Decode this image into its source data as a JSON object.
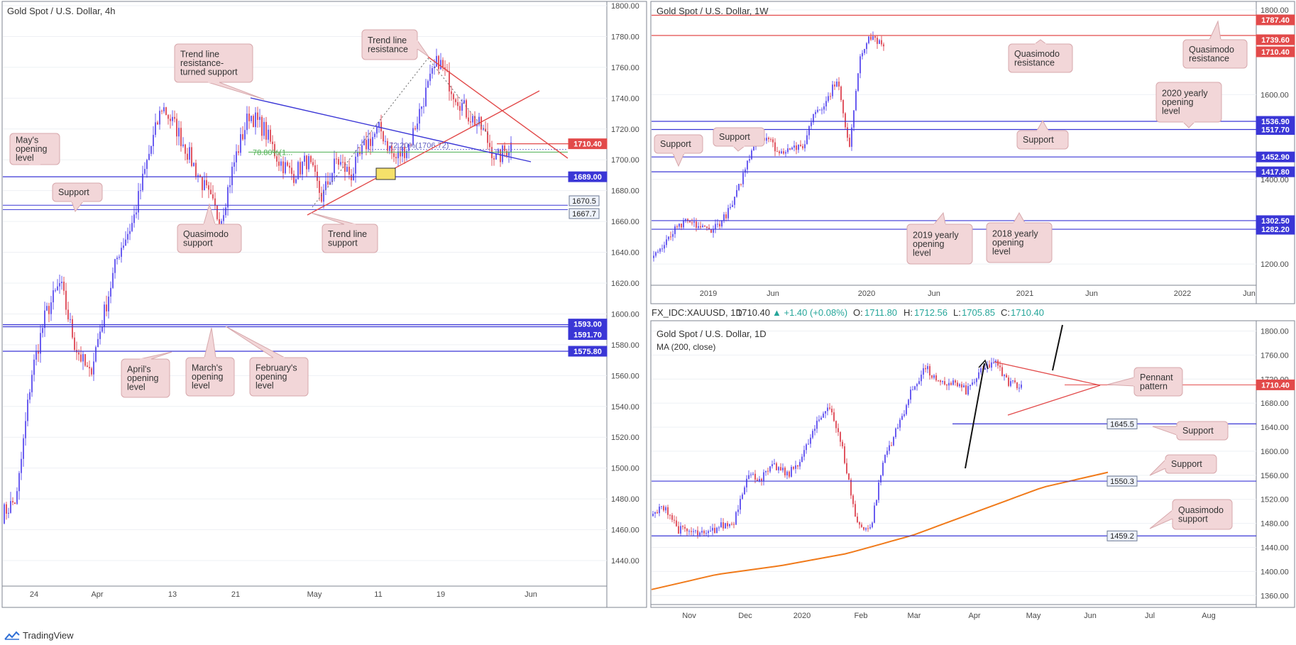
{
  "colors": {
    "bull": "#6a5df0",
    "bear": "#e05561",
    "blue_line": "#3a36d6",
    "red_line": "#e24a4a",
    "ma": "#f07a1a",
    "callout_bg": "#f2d6d8",
    "callout_border": "#d7a8ac",
    "grid": "#eef0f4",
    "border": "#7f8592"
  },
  "brand": {
    "name": "TradingView"
  },
  "panels": {
    "left": {
      "title": "Gold Spot / U.S. Dollar, 4h",
      "y_ticks": [
        "1800.00",
        "1780.00",
        "1760.00",
        "1740.00",
        "1720.00",
        "1700.00",
        "1680.00",
        "1660.00",
        "1640.00",
        "1620.00",
        "1600.00",
        "1580.00",
        "1560.00",
        "1540.00",
        "1520.00",
        "1500.00",
        "1480.00",
        "1460.00",
        "1440.00"
      ],
      "x_ticks": [
        "24",
        "Apr",
        "13",
        "21",
        "May",
        "11",
        "19",
        "Jun"
      ],
      "price_tags": [
        {
          "text": "1710.40",
          "style": "red"
        },
        {
          "text": "1689.00",
          "style": "blue"
        },
        {
          "text": "1670.5",
          "style": "outline"
        },
        {
          "text": "1667.7",
          "style": "outline"
        },
        {
          "text": "1593.00",
          "style": "blue"
        },
        {
          "text": "1591.70",
          "style": "blue"
        },
        {
          "text": "1575.80",
          "style": "blue"
        }
      ],
      "fib_labels": {
        "green": "78.80%(1...",
        "blue": "72.20%(1706.72)"
      },
      "callouts": [
        {
          "id": "trend-resistance",
          "lines": [
            "Trend line",
            "resistance"
          ]
        },
        {
          "id": "trend-turned",
          "lines": [
            "Trend line",
            "resistance-",
            "turned support"
          ]
        },
        {
          "id": "mays-opening",
          "lines": [
            "May's",
            "opening",
            "level"
          ]
        },
        {
          "id": "support",
          "lines": [
            "Support"
          ]
        },
        {
          "id": "quasimodo",
          "lines": [
            "Quasimodo",
            "support"
          ]
        },
        {
          "id": "trend-support",
          "lines": [
            "Trend line",
            "support"
          ]
        },
        {
          "id": "april",
          "lines": [
            "April's",
            "opening",
            "level"
          ]
        },
        {
          "id": "march",
          "lines": [
            "March's",
            "opening",
            "level"
          ]
        },
        {
          "id": "february",
          "lines": [
            "February's",
            "opening",
            "level"
          ]
        }
      ]
    },
    "top_right": {
      "title": "Gold Spot / U.S. Dollar, 1W",
      "y_ticks": [
        "1800.00",
        "1600.00",
        "1400.00",
        "1200.00"
      ],
      "x_ticks": [
        "2019",
        "Jun",
        "2020",
        "Jun",
        "2021",
        "Jun",
        "2022",
        "Jun"
      ],
      "price_tags": [
        {
          "text": "1787.40",
          "style": "red"
        },
        {
          "text": "1739.60",
          "style": "red"
        },
        {
          "text": "1710.40",
          "style": "red"
        },
        {
          "text": "1536.90",
          "style": "blue"
        },
        {
          "text": "1517.70",
          "style": "blue"
        },
        {
          "text": "1452.90",
          "style": "blue"
        },
        {
          "text": "1417.80",
          "style": "blue"
        },
        {
          "text": "1302.50",
          "style": "blue"
        },
        {
          "text": "1282.20",
          "style": "blue"
        }
      ],
      "callouts": [
        {
          "id": "qm-res-1",
          "lines": [
            "Quasimodo",
            "resistance"
          ]
        },
        {
          "id": "qm-res-2",
          "lines": [
            "Quasimodo",
            "resistance"
          ]
        },
        {
          "id": "yearly-2020",
          "lines": [
            "2020 yearly",
            "opening",
            "level"
          ]
        },
        {
          "id": "support-right",
          "lines": [
            "Support"
          ]
        },
        {
          "id": "support-a",
          "lines": [
            "Support"
          ]
        },
        {
          "id": "support-b",
          "lines": [
            "Support"
          ]
        },
        {
          "id": "yearly-2019",
          "lines": [
            "2019 yearly",
            "opening",
            "level"
          ]
        },
        {
          "id": "yearly-2018",
          "lines": [
            "2018 yearly",
            "opening",
            "level"
          ]
        }
      ]
    },
    "bottom_right": {
      "header": {
        "symbol": "FX_IDC:XAUUSD, 1D",
        "last": "1710.40",
        "change": "▲ +1.40 (+0.08%)",
        "o_label": "O:",
        "o": "1711.80",
        "h_label": "H:",
        "h": "1712.56",
        "l_label": "L:",
        "l": "1705.85",
        "c_label": "C:",
        "c": "1710.40"
      },
      "title": "Gold Spot / U.S. Dollar, 1D",
      "ma_label": "MA (200, close)",
      "y_ticks": [
        "1800.00",
        "1760.00",
        "1720.00",
        "1680.00",
        "1640.00",
        "1600.00",
        "1560.00",
        "1520.00",
        "1480.00",
        "1440.00",
        "1400.00",
        "1360.00"
      ],
      "x_ticks": [
        "Nov",
        "Dec",
        "2020",
        "Feb",
        "Mar",
        "Apr",
        "May",
        "Jun",
        "Jul",
        "Aug"
      ],
      "price_tags": [
        {
          "text": "1710.40",
          "style": "red"
        },
        {
          "text": "1645.5",
          "style": "outline"
        },
        {
          "text": "1550.3",
          "style": "outline"
        },
        {
          "text": "1459.2",
          "style": "outline"
        }
      ],
      "callouts": [
        {
          "id": "pennant",
          "lines": [
            "Pennant",
            "pattern"
          ]
        },
        {
          "id": "support-1",
          "lines": [
            "Support"
          ]
        },
        {
          "id": "support-2",
          "lines": [
            "Support"
          ]
        },
        {
          "id": "qm-support",
          "lines": [
            "Quasimodo",
            "support"
          ]
        }
      ]
    }
  },
  "chart_data": [
    {
      "type": "candlestick",
      "title": "Gold Spot / U.S. Dollar, 4h",
      "ylim": [
        1430,
        1805
      ],
      "series": [
        {
          "values_approx": [
            1470,
            1480,
            1560,
            1600,
            1620,
            1580,
            1560,
            1600,
            1640,
            1660,
            1700,
            1735,
            1720,
            1700,
            1680,
            1660,
            1700,
            1730,
            1720,
            1700,
            1690,
            1700,
            1675,
            1700,
            1690,
            1710,
            1720,
            1700,
            1710,
            1740,
            1765,
            1745,
            1730,
            1720,
            1700,
            1710
          ]
        }
      ],
      "levels": [
        1710.4,
        1689.0,
        1670.5,
        1667.7,
        1593.0,
        1591.7,
        1575.8
      ]
    },
    {
      "type": "candlestick",
      "title": "Gold Spot / U.S. Dollar, 1W",
      "ylim": [
        1150,
        1810
      ],
      "series": [
        {
          "values_approx": [
            1220,
            1240,
            1280,
            1300,
            1290,
            1280,
            1300,
            1340,
            1420,
            1500,
            1500,
            1460,
            1480,
            1470,
            1560,
            1580,
            1640,
            1470,
            1700,
            1740,
            1710
          ]
        }
      ],
      "levels": [
        1787.4,
        1739.6,
        1710.4,
        1536.9,
        1517.7,
        1452.9,
        1417.8,
        1302.5,
        1282.2
      ]
    },
    {
      "type": "candlestick",
      "title": "Gold Spot / U.S. Dollar, 1D",
      "ylim": [
        1345,
        1810
      ],
      "series": [
        {
          "values_approx": [
            1490,
            1510,
            1470,
            1465,
            1460,
            1475,
            1480,
            1560,
            1555,
            1575,
            1560,
            1590,
            1640,
            1680,
            1600,
            1480,
            1470,
            1590,
            1640,
            1700,
            1740,
            1710,
            1715,
            1700,
            1730,
            1750,
            1715,
            1710
          ]
        }
      ],
      "ma_200_approx": [
        1370,
        1395,
        1410,
        1430,
        1460,
        1500,
        1540,
        1565
      ],
      "levels": [
        1710.4,
        1645.5,
        1550.3,
        1459.2
      ]
    }
  ]
}
